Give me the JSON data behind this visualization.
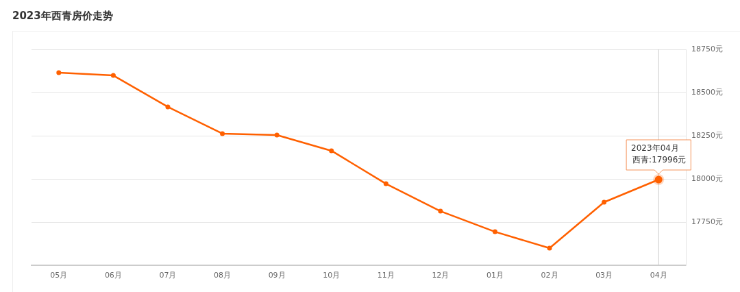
{
  "chart_data": {
    "type": "line",
    "title": "2023年西青房价走势",
    "categories": [
      "05月",
      "06月",
      "07月",
      "08月",
      "09月",
      "10月",
      "11月",
      "12月",
      "01月",
      "02月",
      "03月",
      "04月"
    ],
    "series": [
      {
        "color": "#ff6000",
        "values": [
          18615,
          18599,
          18417,
          18262,
          18254,
          18163,
          17972,
          17813,
          17694,
          17599,
          17865,
          17996
        ]
      }
    ],
    "ylim": [
      17500,
      18750
    ],
    "yticks": [
      {
        "value": 17750,
        "label": "17750元"
      },
      {
        "value": 18000,
        "label": "18000元"
      },
      {
        "value": 18250,
        "label": "18250元"
      },
      {
        "value": 18500,
        "label": "18500元"
      },
      {
        "value": 18750,
        "label": "18750元"
      }
    ],
    "grid": "y",
    "marker": "circle",
    "legend": false,
    "ref_lines": [
      {
        "axis": "x",
        "value": "04月",
        "color": "#cccccc"
      }
    ],
    "annotations": [
      "2023年04月",
      {
        "text": "西青:17996元",
        "x": "04月",
        "y": 17996
      }
    ]
  }
}
